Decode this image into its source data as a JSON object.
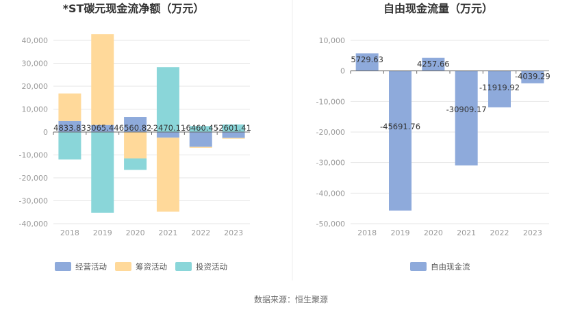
{
  "chart_data": [
    {
      "type": "bar",
      "stacked": true,
      "title": "*ST碳元现金流净额（万元）",
      "categories": [
        "2018",
        "2019",
        "2020",
        "2021",
        "2022",
        "2023"
      ],
      "ylim": [
        -40000,
        40000
      ],
      "yticks": [
        40000,
        30000,
        20000,
        10000,
        0,
        -10000,
        -20000,
        -30000,
        -40000
      ],
      "ytick_labels": [
        "40,000",
        "30,000",
        "20,000",
        "10,000",
        "0",
        "-10,000",
        "-20,000",
        "-30,000",
        "-40,000"
      ],
      "grid": true,
      "legend": "bottom",
      "series": [
        {
          "name": "经营活动",
          "color": "#8eaadb",
          "values": [
            4833.83,
            3065.44,
            6560.82,
            -2470.11,
            -6460.45,
            -2601.41
          ],
          "labels": [
            "4833.83",
            "3065.44",
            "6560.82",
            "-2470.11",
            "-6460.45",
            "-2601.41"
          ]
        },
        {
          "name": "筹资活动",
          "color": "#ffd99a",
          "values": [
            12000,
            39600,
            -11500,
            -32300,
            -400,
            -300
          ]
        },
        {
          "name": "投资活动",
          "color": "#8ad6d9",
          "values": [
            -12000,
            -35200,
            -5000,
            28300,
            2600,
            3300
          ]
        }
      ]
    },
    {
      "type": "bar",
      "title": "自由现金流量（万元）",
      "categories": [
        "2018",
        "2019",
        "2020",
        "2021",
        "2022",
        "2023"
      ],
      "ylim": [
        -50000,
        10000
      ],
      "yticks": [
        10000,
        0,
        -10000,
        -20000,
        -30000,
        -40000,
        -50000
      ],
      "ytick_labels": [
        "10,000",
        "0",
        "-10,000",
        "-20,000",
        "-30,000",
        "-40,000",
        "-50,000"
      ],
      "grid": true,
      "legend": "bottom",
      "series": [
        {
          "name": "自由现金流",
          "color": "#8eaadb",
          "values": [
            5729.63,
            -45691.76,
            4257.66,
            -30909.17,
            -11919.92,
            -4039.29
          ],
          "labels": [
            "5729.63",
            "-45691.76",
            "4257.66",
            "-30909.17",
            "-11919.92",
            "-4039.29"
          ]
        }
      ]
    }
  ],
  "footer": {
    "source": "数据来源：恒生聚源"
  }
}
